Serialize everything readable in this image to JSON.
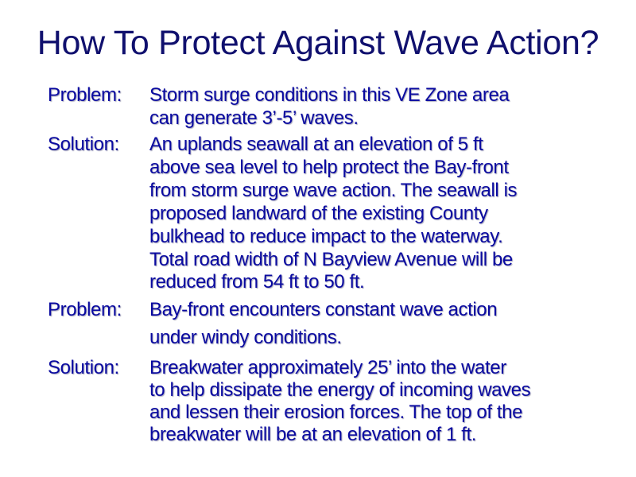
{
  "title": "How To Protect Against Wave Action?",
  "sections": [
    {
      "label": "Problem:",
      "lines": [
        "Storm surge conditions in this VE Zone area",
        "can generate 3’-5’ waves."
      ]
    },
    {
      "label": "Solution:",
      "lines": [
        "An uplands seawall at an elevation of 5 ft",
        "above sea level to help protect the Bay-front",
        "from storm surge wave action. The seawall is",
        "proposed landward of the existing County",
        "bulkhead to reduce impact to the waterway.",
        "Total road width of N Bayview Avenue will be",
        "reduced from 54 ft to 50 ft."
      ]
    },
    {
      "label": "Problem:",
      "lines": [
        "Bay-front encounters constant wave action",
        "under windy conditions."
      ]
    },
    {
      "label": "Solution:",
      "lines": [
        "Breakwater approximately 25’ into the water",
        "to help dissipate the energy of incoming waves",
        "and lessen their erosion forces. The top of the",
        "breakwater will be at an elevation of 1 ft."
      ]
    }
  ],
  "colors": {
    "title": "#10106e",
    "body": "#0a0aa0",
    "background": "#ffffff"
  }
}
